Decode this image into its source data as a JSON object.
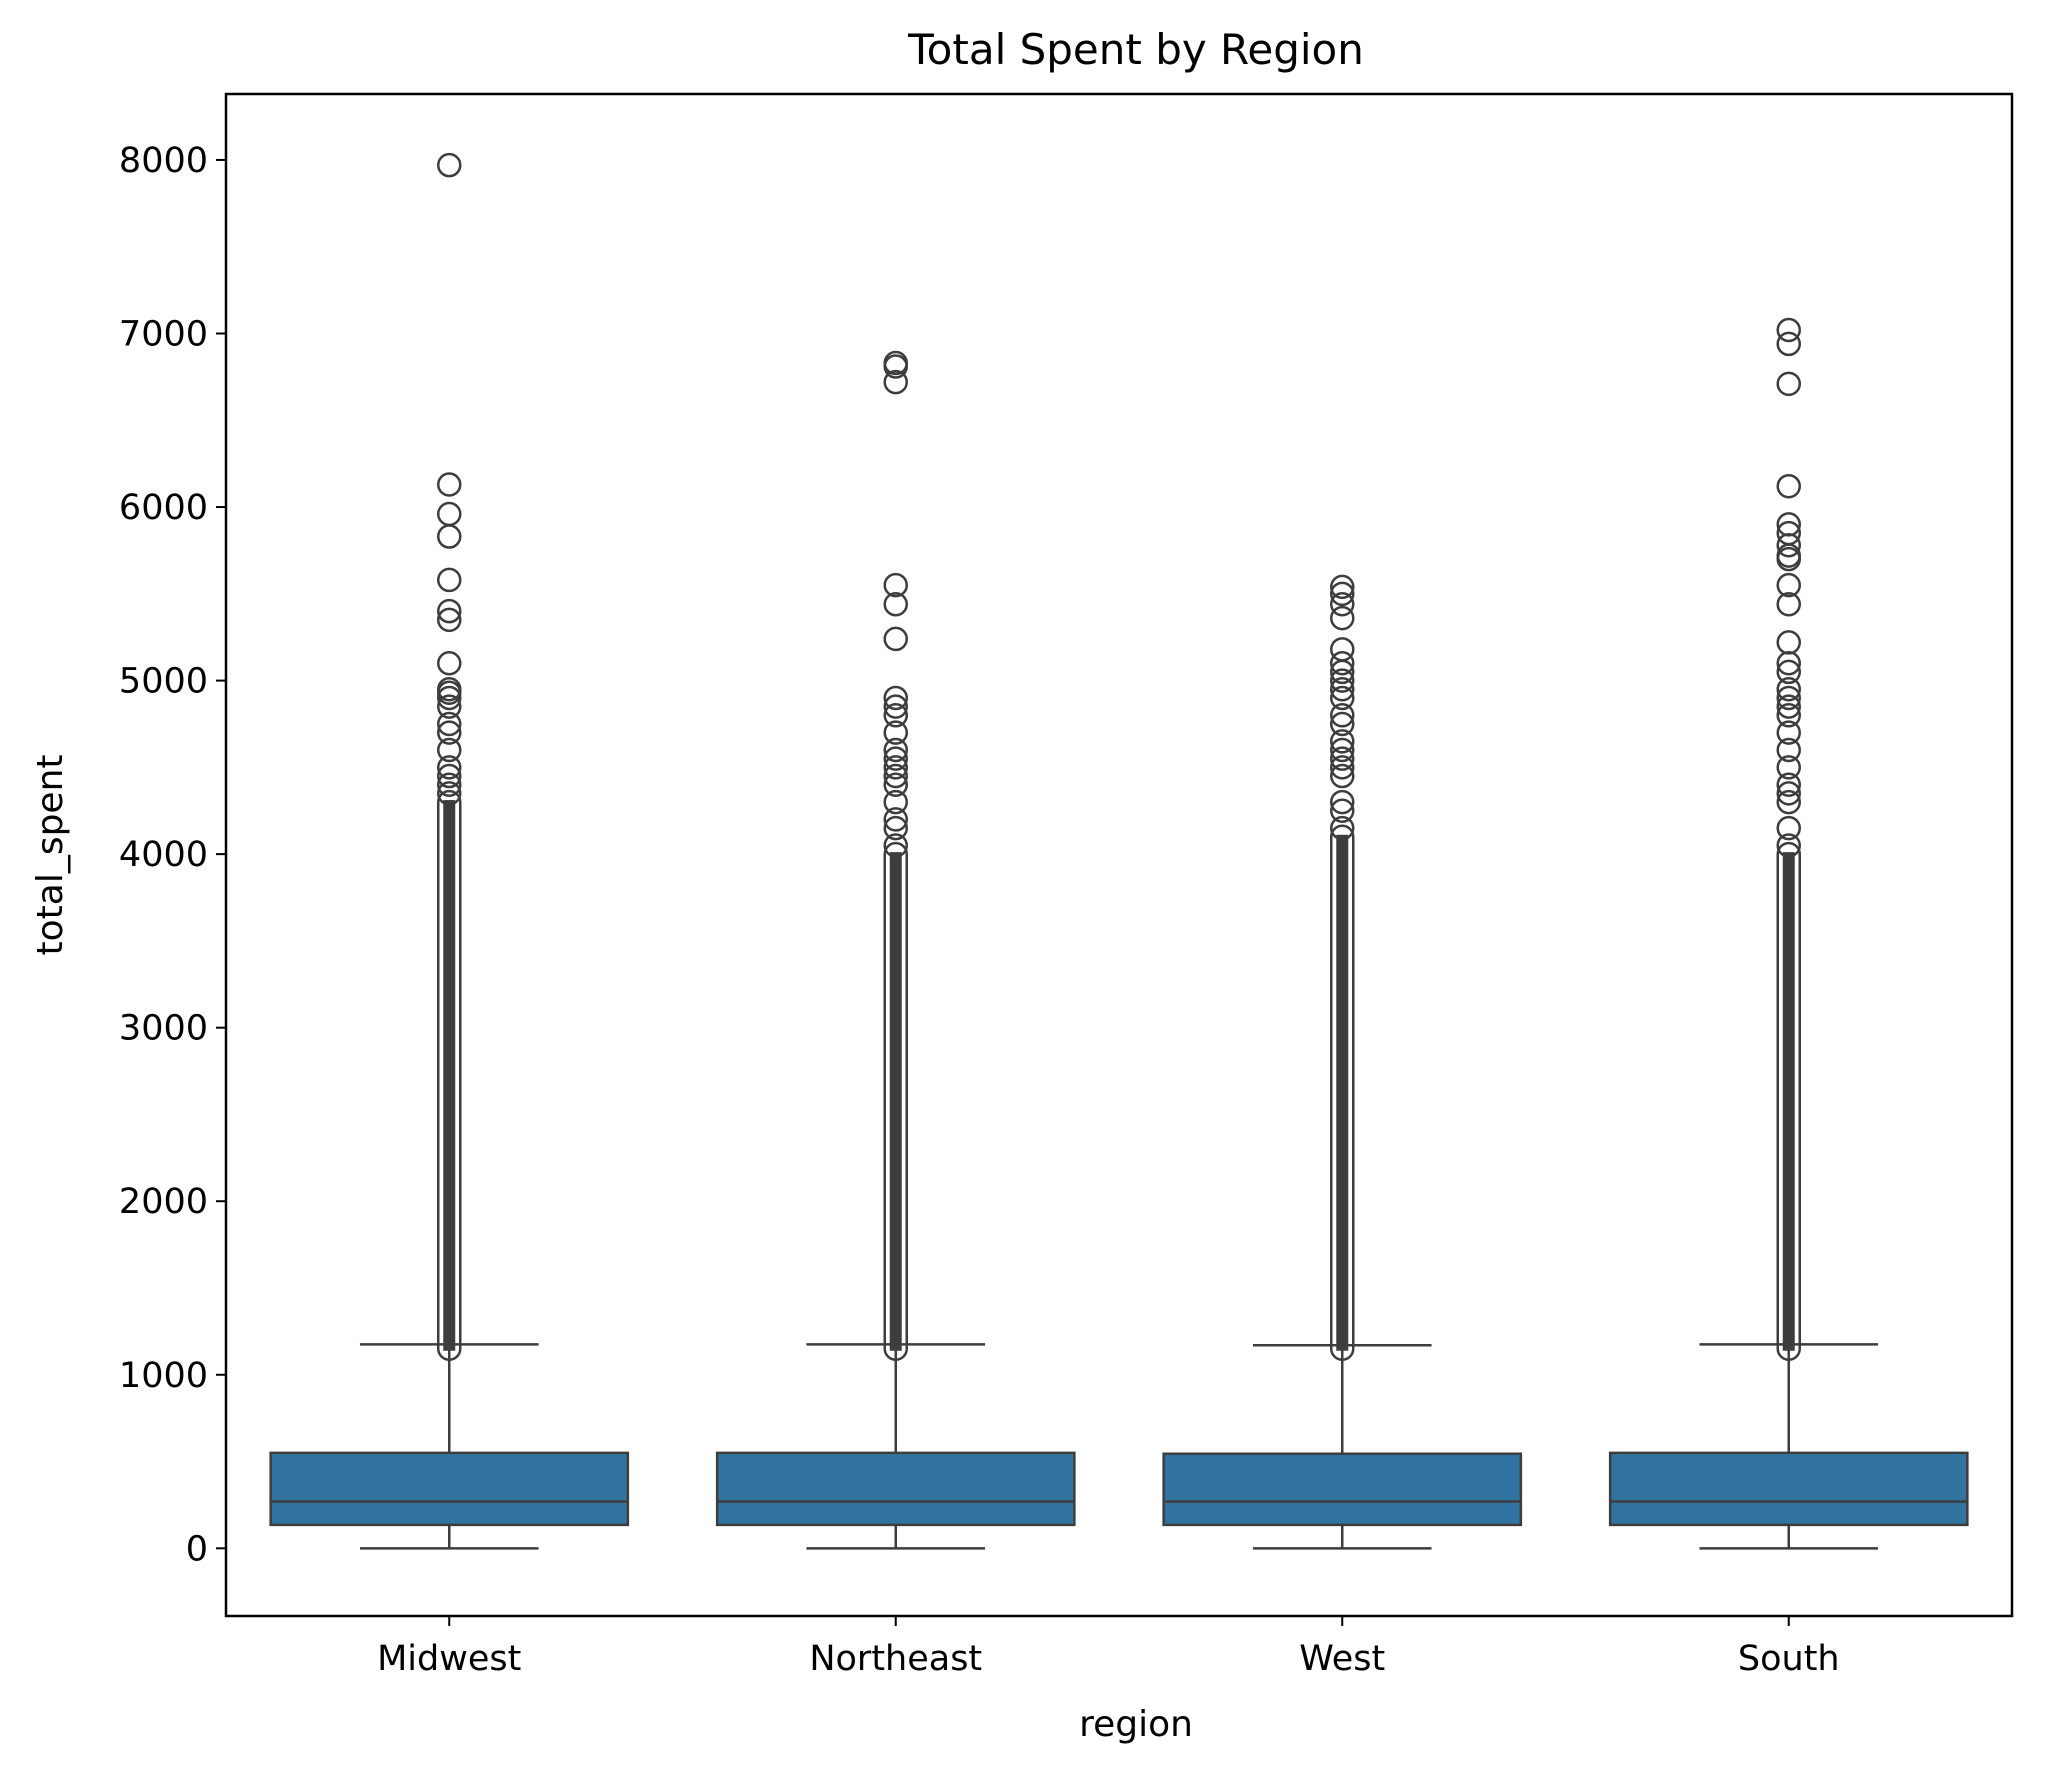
{
  "chart_data": {
    "type": "box",
    "title": "Total Spent by Region",
    "xlabel": "region",
    "ylabel": "total_spent",
    "ylim": [
      -390,
      8380
    ],
    "yticks": [
      0,
      1000,
      2000,
      3000,
      4000,
      5000,
      6000,
      7000,
      8000
    ],
    "grid": false,
    "colors": {
      "box": "#3274a1",
      "line": "#3d3d3d"
    },
    "categories": [
      "Midwest",
      "Northeast",
      "West",
      "South"
    ],
    "boxes": [
      {
        "category": "Midwest",
        "whisker_low": 0,
        "q1": 135,
        "median": 270,
        "q3": 550,
        "whisker_high": 1175,
        "dense_outliers": [
          1150,
          4300
        ],
        "outliers": [
          4350,
          4400,
          4450,
          4500,
          4600,
          4700,
          4750,
          4850,
          4900,
          4930,
          4950,
          5100,
          5350,
          5400,
          5580,
          5830,
          5960,
          6130,
          7970
        ]
      },
      {
        "category": "Northeast",
        "whisker_low": 0,
        "q1": 135,
        "median": 270,
        "q3": 550,
        "whisker_high": 1175,
        "dense_outliers": [
          1150,
          4000
        ],
        "outliers": [
          4050,
          4150,
          4200,
          4300,
          4400,
          4450,
          4500,
          4550,
          4600,
          4700,
          4800,
          4850,
          4900,
          5240,
          5440,
          5550,
          6720,
          6810,
          6830
        ]
      },
      {
        "category": "West",
        "whisker_low": 0,
        "q1": 135,
        "median": 270,
        "q3": 545,
        "whisker_high": 1170,
        "dense_outliers": [
          1150,
          4100
        ],
        "outliers": [
          4150,
          4250,
          4300,
          4450,
          4500,
          4550,
          4600,
          4650,
          4750,
          4800,
          4900,
          4950,
          5000,
          5050,
          5100,
          5180,
          5360,
          5440,
          5500,
          5540
        ]
      },
      {
        "category": "South",
        "whisker_low": 0,
        "q1": 135,
        "median": 270,
        "q3": 550,
        "whisker_high": 1175,
        "dense_outliers": [
          1150,
          4000
        ],
        "outliers": [
          4050,
          4150,
          4300,
          4350,
          4400,
          4500,
          4600,
          4700,
          4800,
          4850,
          4900,
          4950,
          5050,
          5100,
          5220,
          5440,
          5550,
          5700,
          5720,
          5780,
          5850,
          5900,
          6120,
          6710,
          6940,
          7020
        ]
      }
    ]
  }
}
